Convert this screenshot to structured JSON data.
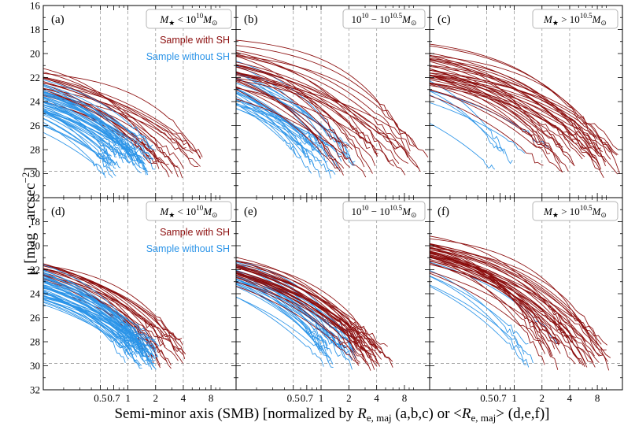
{
  "figure": {
    "xlabel_main": "Semi-minor axis (SMB) [normalized by ",
    "xlabel_r1": "R",
    "xlabel_r1_sub": "e, maj",
    "xlabel_mid": " (a,b,c) or <",
    "xlabel_r2": "R",
    "xlabel_r2_sub": "e, maj",
    "xlabel_end": "> (d,e,f)]",
    "ylabel_main": "μ [mag · arcsec",
    "ylabel_exp": "−2",
    "ylabel_end": "]"
  },
  "colors": {
    "with_sh": "#8b0d0d",
    "without_sh": "#2b94e8",
    "grid": "#9a9a9a"
  },
  "legend": {
    "with_sh": "Sample with SH",
    "without_sh": "Sample without SH"
  },
  "mass_labels": [
    {
      "prefix": "M",
      "sub": "★",
      "rel": " < 10",
      "exp": "10",
      "unit": "M",
      "unit_sub": "⊙"
    },
    {
      "prefix": "",
      "sub": "",
      "rel": "10",
      "exp": "10",
      "mid": " − 10",
      "exp2": "10.5",
      "unit": "M",
      "unit_sub": "⊙"
    },
    {
      "prefix": "M",
      "sub": "★",
      "rel": " > 10",
      "exp": "10.5",
      "unit": "M",
      "unit_sub": "⊙"
    }
  ],
  "chart_data": [
    {
      "panel": "a",
      "type": "line",
      "mass_bin": "low",
      "xscale": "log",
      "xlim": [
        0.12,
        15
      ],
      "ylim": [
        32,
        16
      ],
      "reference_line_y": 29.8,
      "vlines_x": [
        0.5,
        1,
        2,
        4
      ],
      "series": [
        {
          "name": "Sample with SH",
          "n_curves": 22,
          "mu0_range": [
            19.2,
            22.6
          ],
          "x_end_range": [
            1.8,
            7.5
          ]
        },
        {
          "name": "Sample without SH",
          "n_curves": 50,
          "mu0_range": [
            20.4,
            22.6
          ],
          "x_end_range": [
            0.55,
            2.2
          ]
        }
      ]
    },
    {
      "panel": "b",
      "type": "line",
      "mass_bin": "mid",
      "xscale": "log",
      "xlim": [
        0.12,
        15
      ],
      "ylim": [
        32,
        16
      ],
      "reference_line_y": 29.8,
      "vlines_x": [
        0.5,
        1,
        2,
        4
      ],
      "series": [
        {
          "name": "Sample with SH",
          "n_curves": 30,
          "mu0_range": [
            18.3,
            21.4
          ],
          "x_end_range": [
            1.5,
            15
          ]
        },
        {
          "name": "Sample without SH",
          "n_curves": 28,
          "mu0_range": [
            18.0,
            22.0
          ],
          "x_end_range": [
            0.5,
            2.5
          ]
        }
      ]
    },
    {
      "panel": "c",
      "type": "line",
      "mass_bin": "high",
      "xscale": "log",
      "xlim": [
        0.12,
        15
      ],
      "ylim": [
        32,
        16
      ],
      "reference_line_y": 29.8,
      "vlines_x": [
        0.5,
        1,
        2,
        4
      ],
      "series": [
        {
          "name": "Sample with SH",
          "n_curves": 38,
          "mu0_range": [
            18.2,
            21.5
          ],
          "x_end_range": [
            2,
            15
          ]
        },
        {
          "name": "Sample without SH",
          "n_curves": 6,
          "mu0_range": [
            19.3,
            21.3
          ],
          "x_end_range": [
            0.6,
            3.5
          ]
        }
      ]
    },
    {
      "panel": "d",
      "type": "line",
      "mass_bin": "low",
      "xscale": "log",
      "xlim": [
        0.12,
        15
      ],
      "ylim": [
        32,
        16
      ],
      "reference_line_y": 29.8,
      "vlines_x": [
        0.5,
        1,
        2,
        4
      ],
      "series": [
        {
          "name": "Sample with SH",
          "n_curves": 22,
          "mu0_range": [
            19.9,
            21.3
          ],
          "x_end_range": [
            1.8,
            4.5
          ]
        },
        {
          "name": "Sample without SH",
          "n_curves": 50,
          "mu0_range": [
            19.6,
            22.6
          ],
          "x_end_range": [
            0.9,
            2.2
          ]
        }
      ]
    },
    {
      "panel": "e",
      "type": "line",
      "mass_bin": "mid",
      "xscale": "log",
      "xlim": [
        0.12,
        15
      ],
      "ylim": [
        32,
        16
      ],
      "reference_line_y": 29.8,
      "vlines_x": [
        0.5,
        1,
        2,
        4
      ],
      "series": [
        {
          "name": "Sample with SH",
          "n_curves": 30,
          "mu0_range": [
            19.3,
            20.5
          ],
          "x_end_range": [
            2.5,
            6
          ]
        },
        {
          "name": "Sample without SH",
          "n_curves": 28,
          "mu0_range": [
            19.4,
            20.7
          ],
          "x_end_range": [
            0.9,
            2.5
          ]
        }
      ]
    },
    {
      "panel": "f",
      "type": "line",
      "mass_bin": "high",
      "xscale": "log",
      "xlim": [
        0.12,
        15
      ],
      "ylim": [
        32,
        16
      ],
      "reference_line_y": 29.8,
      "vlines_x": [
        0.5,
        1,
        2,
        4
      ],
      "series": [
        {
          "name": "Sample with SH",
          "n_curves": 38,
          "mu0_range": [
            18.3,
            19.9
          ],
          "x_end_range": [
            2,
            15
          ]
        },
        {
          "name": "Sample without SH",
          "n_curves": 6,
          "mu0_range": [
            18.8,
            19.7
          ],
          "x_end_range": [
            1.2,
            3
          ]
        }
      ]
    }
  ],
  "axes": {
    "x_ticks": [
      {
        "v": 0.5,
        "label": "0.5"
      },
      {
        "v": 0.7,
        "label": "0.7"
      },
      {
        "v": 1,
        "label": "1"
      },
      {
        "v": 2,
        "label": "2"
      },
      {
        "v": 4,
        "label": "4"
      },
      {
        "v": 8,
        "label": "8"
      }
    ],
    "y_ticks_top": [
      16,
      18,
      20,
      22,
      24,
      26,
      28,
      30,
      32
    ],
    "y_ticks_bottom": [
      18,
      20,
      22,
      24,
      26,
      28,
      30,
      32
    ],
    "x_minor": [
      0.2,
      0.3,
      0.4,
      0.6,
      0.8,
      0.9,
      3,
      5,
      6,
      7,
      9,
      10,
      20,
      30
    ]
  },
  "panel_letters": [
    "(a)",
    "(b)",
    "(c)",
    "(d)",
    "(e)",
    "(f)"
  ]
}
